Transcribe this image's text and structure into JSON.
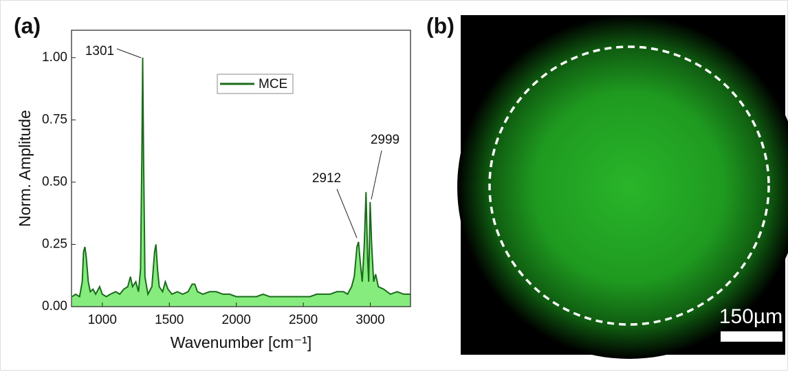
{
  "chart_data": {
    "type": "area-line",
    "panel_label": "(a)",
    "x_label": "Wavenumber [cm⁻¹]",
    "y_label": "Norm. Amplitude",
    "xlim": [
      770,
      3300
    ],
    "ylim": [
      0,
      1.11
    ],
    "xticks": [
      1000,
      1500,
      2000,
      2500,
      3000
    ],
    "yticks": [
      {
        "value": 0,
        "label": "0.00"
      },
      {
        "value": 0.25,
        "label": "0.25"
      },
      {
        "value": 0.5,
        "label": "0.50"
      },
      {
        "value": 0.75,
        "label": "0.75"
      },
      {
        "value": 1,
        "label": "1.00"
      }
    ],
    "legend": "top-center",
    "x": [
      775,
      800,
      830,
      850,
      860,
      870,
      880,
      895,
      910,
      930,
      950,
      980,
      1000,
      1030,
      1060,
      1100,
      1130,
      1160,
      1190,
      1210,
      1225,
      1250,
      1270,
      1285,
      1295,
      1301,
      1308,
      1318,
      1340,
      1370,
      1390,
      1400,
      1412,
      1425,
      1450,
      1470,
      1490,
      1520,
      1560,
      1600,
      1640,
      1670,
      1690,
      1710,
      1750,
      1800,
      1850,
      1900,
      1950,
      2000,
      2050,
      2100,
      2150,
      2200,
      2250,
      2300,
      2350,
      2400,
      2450,
      2500,
      2550,
      2600,
      2650,
      2700,
      2750,
      2800,
      2830,
      2860,
      2880,
      2900,
      2912,
      2925,
      2940,
      2955,
      2968,
      2980,
      2988,
      2999,
      3010,
      3025,
      3040,
      3060,
      3100,
      3150,
      3200,
      3250,
      3300
    ],
    "series": [
      {
        "name": "MCE",
        "color": "#1b6b1b",
        "fill": "#86ec7e",
        "values": [
          0.04,
          0.05,
          0.04,
          0.1,
          0.22,
          0.24,
          0.2,
          0.1,
          0.06,
          0.07,
          0.05,
          0.08,
          0.05,
          0.04,
          0.05,
          0.06,
          0.05,
          0.07,
          0.08,
          0.12,
          0.08,
          0.1,
          0.06,
          0.15,
          0.6,
          1.0,
          0.6,
          0.12,
          0.05,
          0.08,
          0.22,
          0.25,
          0.15,
          0.08,
          0.06,
          0.1,
          0.07,
          0.05,
          0.06,
          0.05,
          0.06,
          0.09,
          0.09,
          0.06,
          0.05,
          0.06,
          0.06,
          0.05,
          0.05,
          0.04,
          0.04,
          0.04,
          0.04,
          0.05,
          0.04,
          0.04,
          0.04,
          0.04,
          0.04,
          0.04,
          0.04,
          0.05,
          0.05,
          0.05,
          0.06,
          0.06,
          0.05,
          0.08,
          0.12,
          0.24,
          0.26,
          0.18,
          0.1,
          0.25,
          0.46,
          0.2,
          0.1,
          0.42,
          0.25,
          0.1,
          0.13,
          0.08,
          0.07,
          0.05,
          0.06,
          0.05,
          0.05
        ]
      }
    ],
    "annotations": [
      "1301",
      "2912",
      "2999"
    ]
  },
  "image": {
    "panel_label": "(b)",
    "scale_bar_label": "150µm"
  }
}
